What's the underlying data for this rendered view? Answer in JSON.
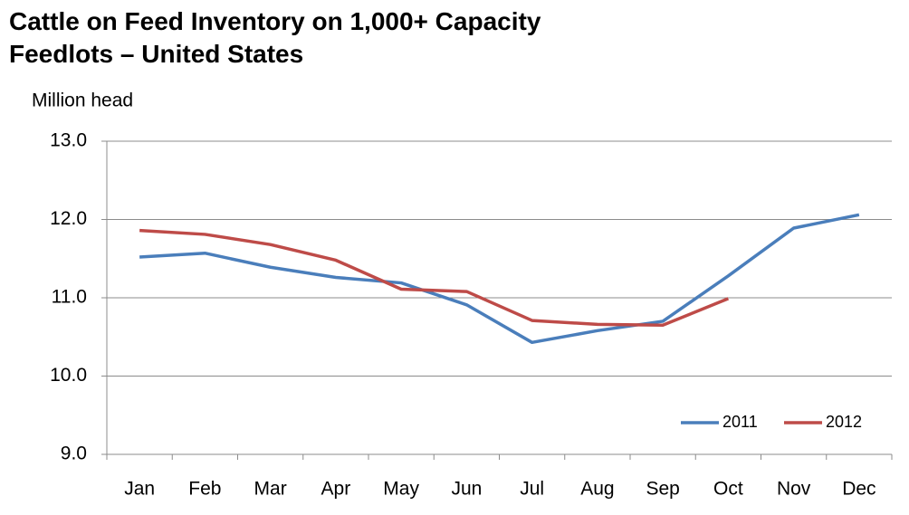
{
  "chart_data": {
    "type": "line",
    "title": "Cattle on Feed Inventory on 1,000+ Capacity Feedlots – United States",
    "y_label": "Million head",
    "categories": [
      "Jan",
      "Feb",
      "Mar",
      "Apr",
      "May",
      "Jun",
      "Jul",
      "Aug",
      "Sep",
      "Oct",
      "Nov",
      "Dec"
    ],
    "series": [
      {
        "name": "2011",
        "color": "#4a7ebb",
        "values": [
          11.52,
          11.57,
          11.39,
          11.26,
          11.19,
          10.91,
          10.43,
          10.58,
          10.7,
          11.28,
          11.89,
          12.06
        ]
      },
      {
        "name": "2012",
        "color": "#be4b48",
        "values": [
          11.86,
          11.81,
          11.68,
          11.48,
          11.11,
          11.08,
          10.71,
          10.66,
          10.65,
          10.99,
          null,
          null
        ]
      }
    ],
    "ylim": [
      9,
      13
    ],
    "yticks": [
      {
        "value": 9,
        "label": "9.0"
      },
      {
        "value": 10,
        "label": "10.0"
      },
      {
        "value": 11,
        "label": "11.0"
      },
      {
        "value": 12,
        "label": "12.0"
      },
      {
        "value": 13,
        "label": "13.0"
      }
    ],
    "grid": true,
    "legend": "lower right"
  }
}
